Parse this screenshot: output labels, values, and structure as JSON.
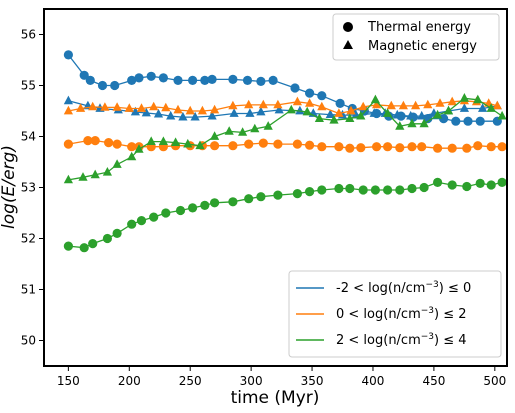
{
  "chart_data": {
    "type": "line",
    "xlabel": "time (Myr)",
    "ylabel": "log(E/erg)",
    "xlim": [
      130,
      510
    ],
    "ylim": [
      49.5,
      56.5
    ],
    "xticks": [
      150,
      200,
      250,
      300,
      350,
      400,
      450,
      500
    ],
    "yticks": [
      50,
      51,
      52,
      53,
      54,
      55,
      56
    ],
    "grid": false,
    "marker_legend": {
      "placement": "top-right",
      "entries": [
        {
          "label": "Thermal energy",
          "marker": "circle"
        },
        {
          "label": "Magnetic energy",
          "marker": "triangle"
        }
      ]
    },
    "color_legend_placement": "lower-right",
    "series": [
      {
        "name": "-2 < log(n/cm⁻³) ≤  0",
        "label_main": "-2 < log(n/cm",
        "label_sup": "−3",
        "label_end": ") ≤  0",
        "color": "#1f77b4",
        "thermal": {
          "x": [
            150,
            163,
            168,
            178,
            188,
            202,
            208,
            218,
            228,
            240,
            252,
            262,
            268,
            285,
            297,
            308,
            318,
            336,
            348,
            358,
            373,
            383,
            393,
            403,
            413,
            423,
            433,
            445,
            458,
            468,
            478,
            488,
            502
          ],
          "y": [
            55.6,
            55.2,
            55.1,
            55.0,
            55.0,
            55.1,
            55.15,
            55.18,
            55.15,
            55.1,
            55.1,
            55.1,
            55.12,
            55.12,
            55.1,
            55.08,
            55.1,
            54.95,
            54.85,
            54.8,
            54.65,
            54.55,
            54.5,
            54.45,
            54.4,
            54.4,
            54.38,
            54.35,
            54.35,
            54.3,
            54.3,
            54.3,
            54.3
          ]
        },
        "magnetic": {
          "x": [
            150,
            166,
            176,
            191,
            205,
            214,
            224,
            234,
            244,
            254,
            268,
            286,
            299,
            308,
            323,
            340,
            351,
            365,
            375,
            386,
            401,
            410,
            420,
            431,
            440,
            450,
            462,
            475,
            490,
            502
          ],
          "y": [
            54.7,
            54.6,
            54.55,
            54.52,
            54.48,
            54.46,
            54.44,
            54.4,
            54.38,
            54.38,
            54.4,
            54.45,
            54.45,
            54.48,
            54.52,
            54.5,
            54.45,
            54.43,
            54.42,
            54.42,
            54.45,
            54.45,
            54.42,
            54.4,
            54.4,
            54.45,
            54.5,
            54.55,
            54.55,
            54.6
          ]
        }
      },
      {
        "name": "0 < log(n/cm⁻³) ≤  2",
        "label_main": "0 < log(n/cm",
        "label_sup": "−3",
        "label_end": ") ≤  2",
        "color": "#ff7f0e",
        "thermal": {
          "x": [
            150,
            166,
            172,
            183,
            190,
            202,
            208,
            218,
            228,
            238,
            250,
            260,
            270,
            285,
            298,
            310,
            322,
            338,
            348,
            358,
            372,
            381,
            390,
            403,
            412,
            422,
            432,
            440,
            453,
            465,
            477,
            486,
            497,
            506
          ],
          "y": [
            53.85,
            53.92,
            53.92,
            53.88,
            53.85,
            53.8,
            53.8,
            53.8,
            53.8,
            53.82,
            53.82,
            53.82,
            53.82,
            53.82,
            53.85,
            53.87,
            53.85,
            53.85,
            53.83,
            53.8,
            53.8,
            53.77,
            53.78,
            53.8,
            53.8,
            53.78,
            53.8,
            53.8,
            53.77,
            53.77,
            53.77,
            53.82,
            53.8,
            53.8
          ]
        },
        "magnetic": {
          "x": [
            150,
            160,
            170,
            180,
            190,
            200,
            210,
            220,
            230,
            240,
            250,
            260,
            270,
            285,
            298,
            310,
            322,
            338,
            348,
            358,
            372,
            382,
            392,
            403,
            415,
            425,
            435,
            445,
            455,
            465,
            475,
            485,
            495,
            502
          ],
          "y": [
            54.5,
            54.55,
            54.58,
            54.57,
            54.57,
            54.55,
            54.55,
            54.58,
            54.56,
            54.52,
            54.5,
            54.5,
            54.52,
            54.6,
            54.62,
            54.62,
            54.62,
            54.68,
            54.65,
            54.58,
            54.45,
            54.5,
            54.58,
            54.62,
            54.6,
            54.6,
            54.6,
            54.62,
            54.65,
            54.68,
            54.7,
            54.68,
            54.65,
            54.6
          ]
        }
      },
      {
        "name": "2 < log(n/cm⁻³) ≤  4",
        "label_main": "2 < log(n/cm",
        "label_sup": "−3",
        "label_end": ") ≤  4",
        "color": "#2ca02c",
        "thermal": {
          "x": [
            150,
            163,
            170,
            182,
            190,
            202,
            210,
            220,
            230,
            242,
            252,
            262,
            270,
            285,
            298,
            308,
            322,
            338,
            348,
            358,
            372,
            381,
            392,
            402,
            412,
            422,
            432,
            442,
            453,
            465,
            477,
            488,
            497,
            506
          ],
          "y": [
            51.85,
            51.82,
            51.9,
            52.0,
            52.1,
            52.28,
            52.35,
            52.42,
            52.5,
            52.55,
            52.6,
            52.65,
            52.7,
            52.72,
            52.78,
            52.82,
            52.85,
            52.88,
            52.92,
            52.95,
            52.98,
            52.98,
            52.95,
            52.95,
            52.95,
            52.95,
            52.98,
            53.0,
            53.1,
            53.05,
            53.02,
            53.08,
            53.05,
            53.1
          ]
        },
        "magnetic": {
          "x": [
            150,
            162,
            172,
            182,
            190,
            202,
            208,
            218,
            228,
            238,
            248,
            258,
            270,
            282,
            293,
            303,
            314,
            333,
            346,
            356,
            368,
            381,
            390,
            402,
            412,
            422,
            432,
            442,
            453,
            462,
            475,
            486,
            497,
            506
          ],
          "y": [
            53.15,
            53.2,
            53.25,
            53.3,
            53.45,
            53.6,
            53.75,
            53.9,
            53.9,
            53.88,
            53.85,
            53.82,
            54.0,
            54.1,
            54.08,
            54.15,
            54.2,
            54.52,
            54.48,
            54.35,
            54.32,
            54.35,
            54.4,
            54.72,
            54.45,
            54.2,
            54.25,
            54.25,
            54.42,
            54.5,
            54.75,
            54.72,
            54.55,
            54.4
          ]
        }
      }
    ]
  }
}
